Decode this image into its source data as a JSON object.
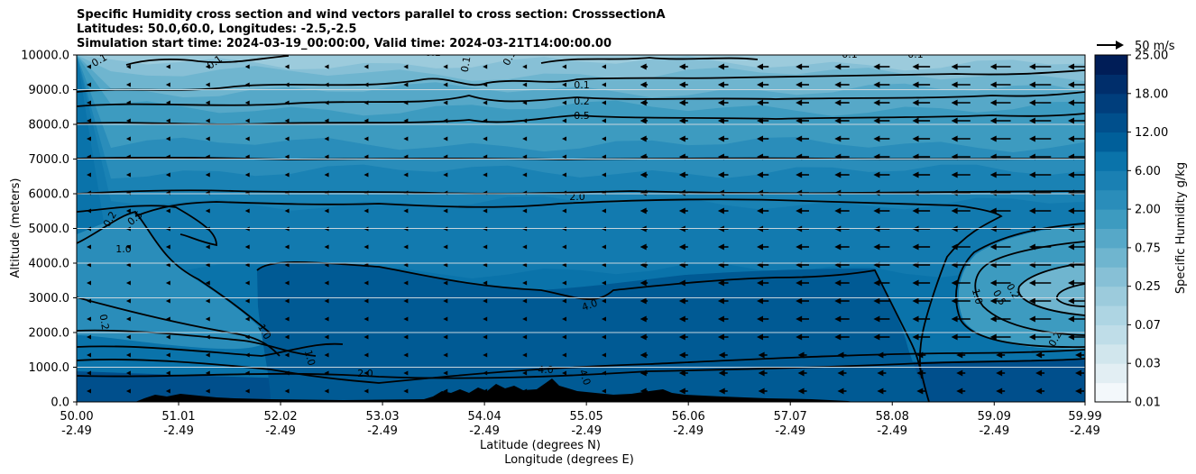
{
  "title_lines": [
    "Specific Humidity cross section and wind vectors parallel to cross section: CrosssectionA",
    "Latitudes: 50.0,60.0, Longitudes: -2.5,-2.5",
    "Simulation start time: 2024-03-19_00:00:00, Valid time: 2024-03-21T14:00:00.00"
  ],
  "chart_data": {
    "type": "heatmap",
    "title": "Specific Humidity cross section and wind vectors parallel to cross section: CrosssectionA",
    "ylabel": "Altitude (meters)",
    "xlabel_lines": [
      "Latitude (degrees N)",
      "Longitude (degrees E)"
    ],
    "ylim": [
      0,
      10000
    ],
    "xlim": [
      50.0,
      59.99
    ],
    "grid": "horizontal",
    "y_ticks": [
      "0.0",
      "1000.0",
      "2000.0",
      "3000.0",
      "4000.0",
      "5000.0",
      "6000.0",
      "7000.0",
      "8000.0",
      "9000.0",
      "10000.0"
    ],
    "x_ticks": [
      {
        "lat": "50.00",
        "lon": "-2.49"
      },
      {
        "lat": "51.01",
        "lon": "-2.49"
      },
      {
        "lat": "52.02",
        "lon": "-2.49"
      },
      {
        "lat": "53.03",
        "lon": "-2.49"
      },
      {
        "lat": "54.04",
        "lon": "-2.49"
      },
      {
        "lat": "55.05",
        "lon": "-2.49"
      },
      {
        "lat": "56.06",
        "lon": "-2.49"
      },
      {
        "lat": "57.07",
        "lon": "-2.49"
      },
      {
        "lat": "58.08",
        "lon": "-2.49"
      },
      {
        "lat": "59.09",
        "lon": "-2.49"
      },
      {
        "lat": "59.99",
        "lon": "-2.49"
      }
    ],
    "colorbar": {
      "label": "Specific Humidity g/kg",
      "tick_labels": [
        "0.01",
        "0.03",
        "0.07",
        "0.25",
        "0.75",
        "2.00",
        "6.00",
        "12.00",
        "18.00",
        "25.00"
      ],
      "levels": [
        0.01,
        0.02,
        0.03,
        0.05,
        0.07,
        0.1,
        0.25,
        0.5,
        0.75,
        1.0,
        2.0,
        4.0,
        6.0,
        9.0,
        12.0,
        15.0,
        18.0,
        21.0,
        25.0
      ],
      "colors": [
        "#f3f8fb",
        "#e2eef3",
        "#d1e6ed",
        "#bfdde8",
        "#aed5e3",
        "#9ccbdc",
        "#87c0d6",
        "#6fb5cf",
        "#56a8c8",
        "#3d9bc0",
        "#2a8dba",
        "#1a80b3",
        "#0a73aa",
        "#005f9a",
        "#004f8c",
        "#003e7c",
        "#002e6b",
        "#001d57"
      ]
    },
    "wind_legend": "50 m/s",
    "contour_labels": [
      "0.1",
      "0.2",
      "0.5",
      "1.0",
      "2.0",
      "4.0"
    ]
  }
}
